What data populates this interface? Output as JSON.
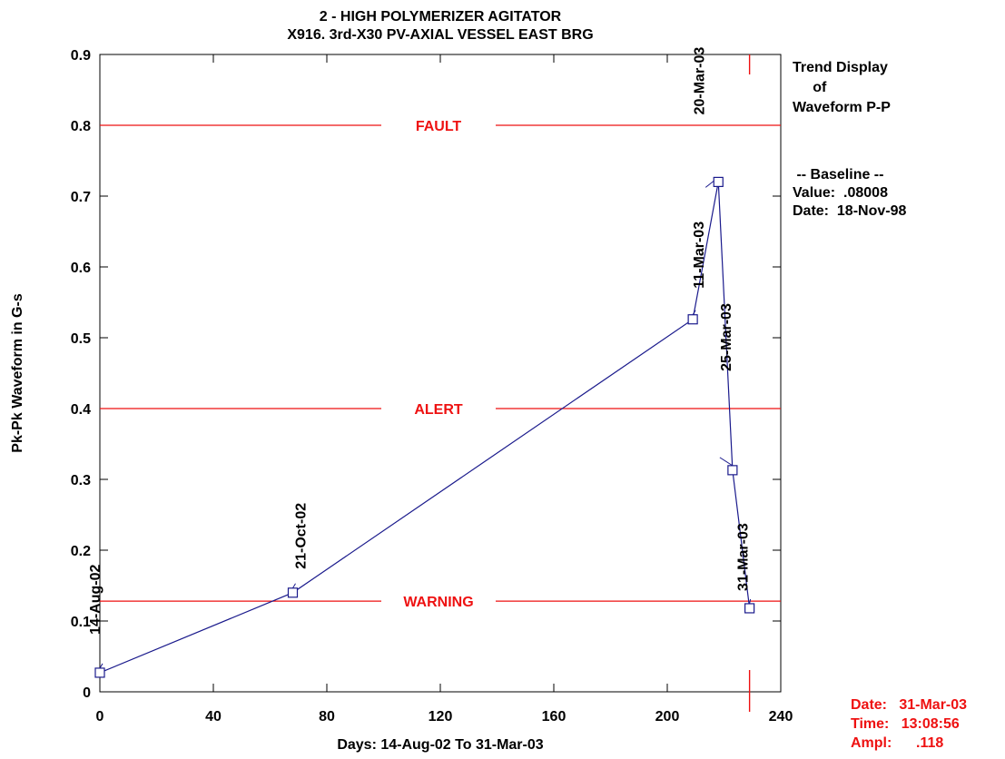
{
  "chart_data": {
    "type": "line",
    "title": "2    - HIGH POLYMERIZER AGITATOR",
    "subtitle": "X916.  3rd-X30    PV-AXIAL  VESSEL EAST BRG",
    "xlabel": "Days:  14-Aug-02  To  31-Mar-03",
    "ylabel": "Pk-Pk Waveform in G-s",
    "xlim": [
      0,
      240
    ],
    "ylim": [
      0,
      0.9
    ],
    "xticks": [
      "0",
      "40",
      "80",
      "120",
      "160",
      "200",
      "240"
    ],
    "yticks": [
      "0",
      "0.1",
      "0.2",
      "0.3",
      "0.4",
      "0.5",
      "0.6",
      "0.7",
      "0.8",
      "0.9"
    ],
    "grid": false,
    "series_color": "#1a1a8c",
    "points": [
      {
        "x": 0,
        "y": 0.027,
        "label": "14-Aug-02"
      },
      {
        "x": 68,
        "y": 0.14,
        "label": "21-Oct-02"
      },
      {
        "x": 209,
        "y": 0.526,
        "label": "11-Mar-03"
      },
      {
        "x": 218,
        "y": 0.72,
        "label": "20-Mar-03"
      },
      {
        "x": 223,
        "y": 0.313,
        "label": "25-Mar-03"
      },
      {
        "x": 229,
        "y": 0.118,
        "label": "31-Mar-03"
      }
    ],
    "thresholds": [
      {
        "label": "FAULT",
        "value": 0.8,
        "color": "#ee1111"
      },
      {
        "label": "ALERT",
        "value": 0.4,
        "color": "#ee1111"
      },
      {
        "label": "WARNING",
        "value": 0.128,
        "color": "#ee1111"
      }
    ],
    "cursor_x": 229
  },
  "side_panel": {
    "heading_line1": "Trend Display",
    "heading_line2": "     of",
    "heading_line3": "Waveform P-P",
    "baseline_title": " -- Baseline --",
    "baseline_value": "Value:  .08008",
    "baseline_date": "Date:  18-Nov-98"
  },
  "cursor_info": {
    "date": "Date:   31-Mar-03",
    "time": "Time:   13:08:56",
    "ampl": "Ampl:      .118"
  }
}
